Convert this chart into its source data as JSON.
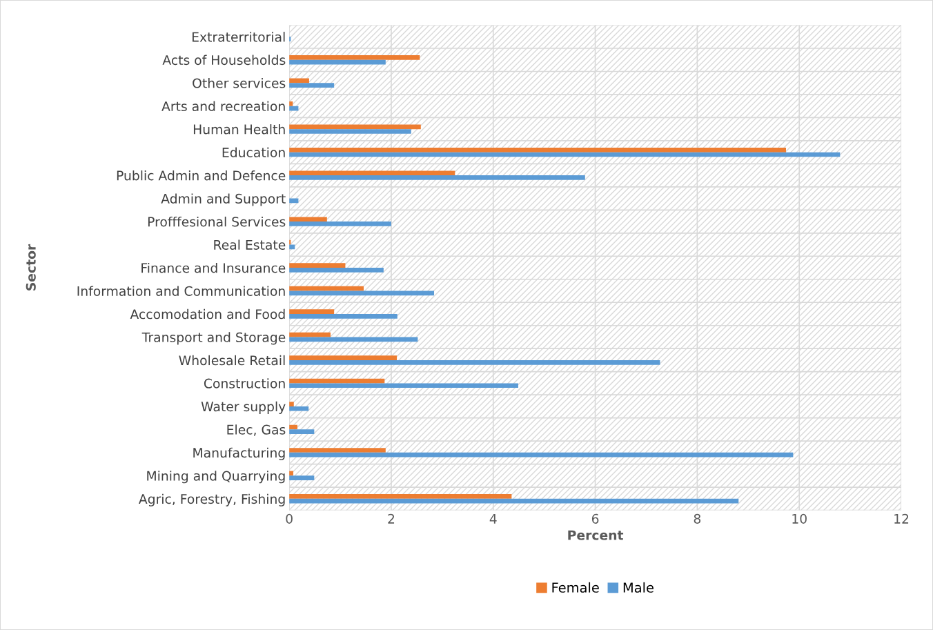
{
  "chart_data": {
    "type": "bar",
    "orientation": "horizontal",
    "xlabel": "Percent",
    "ylabel": "Sector",
    "categories": [
      "Extraterritorial",
      "Acts of Households",
      "Other services",
      "Arts and recreation",
      "Human Health",
      "Education",
      "Public Admin and Defence",
      "Admin and Support",
      "Profffesional Services",
      "Real Estate",
      "Finance and Insurance",
      "Information and Communication",
      "Accomodation and Food",
      "Transport and Storage",
      "Wholesale Retail",
      "Construction",
      "Water supply",
      "Elec, Gas",
      "Manufacturing",
      "Mining and Quarrying",
      "Agric, Forestry, Fishing"
    ],
    "series": [
      {
        "name": "Female",
        "color": "#ed7d31",
        "values": [
          0,
          2.56,
          0.39,
          0.07,
          2.58,
          9.74,
          3.25,
          0,
          0.74,
          0.03,
          1.1,
          1.46,
          0.88,
          0.81,
          2.11,
          1.87,
          0.09,
          0.16,
          1.89,
          0.08,
          4.36
        ]
      },
      {
        "name": "Male",
        "color": "#5b9bd5",
        "values": [
          0.03,
          1.89,
          0.88,
          0.18,
          2.39,
          10.8,
          5.8,
          0.18,
          2.0,
          0.11,
          1.85,
          2.84,
          2.12,
          2.52,
          7.27,
          4.49,
          0.38,
          0.49,
          9.88,
          0.49,
          8.81
        ]
      }
    ],
    "xlim": [
      0,
      12
    ],
    "xticks": [
      0,
      2,
      4,
      6,
      8,
      10,
      12
    ],
    "grid": "x",
    "legend": "bottom"
  }
}
